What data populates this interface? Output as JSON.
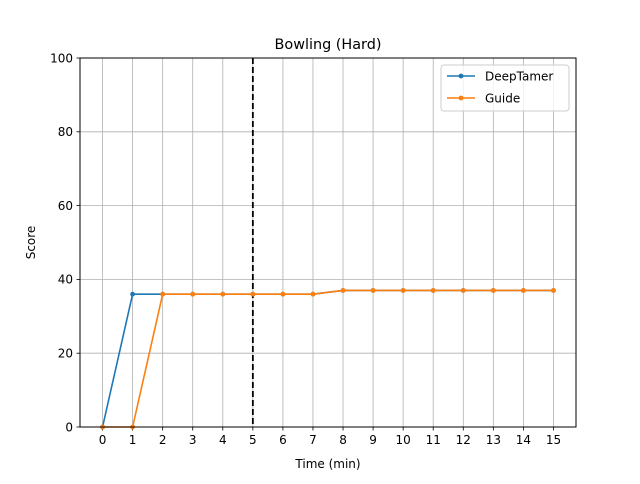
{
  "chart_data": {
    "type": "line",
    "title": "Bowling (Hard)",
    "xlabel": "Time (min)",
    "ylabel": "Score",
    "xlim": [
      -0.75,
      15.75
    ],
    "ylim": [
      0,
      100
    ],
    "xticks": [
      0,
      1,
      2,
      3,
      4,
      5,
      6,
      7,
      8,
      9,
      10,
      11,
      12,
      13,
      14,
      15
    ],
    "yticks": [
      0,
      20,
      40,
      60,
      80,
      100
    ],
    "grid": true,
    "legend": "top-right",
    "vline": {
      "x": 5,
      "style": "dashed",
      "color": "#000000"
    },
    "x": [
      0,
      1,
      2,
      3,
      4,
      5,
      6,
      7,
      8,
      9,
      10,
      11,
      12,
      13,
      14,
      15
    ],
    "series": [
      {
        "name": "DeepTamer",
        "color": "#1f77b4",
        "values": [
          0,
          36,
          36,
          36,
          36,
          36,
          36,
          36,
          37,
          37,
          37,
          37,
          37,
          37,
          37,
          37
        ]
      },
      {
        "name": "Guide",
        "color": "#ff7f0e",
        "values": [
          0,
          0,
          36,
          36,
          36,
          36,
          36,
          36,
          37,
          37,
          37,
          37,
          37,
          37,
          37,
          37
        ]
      }
    ]
  }
}
